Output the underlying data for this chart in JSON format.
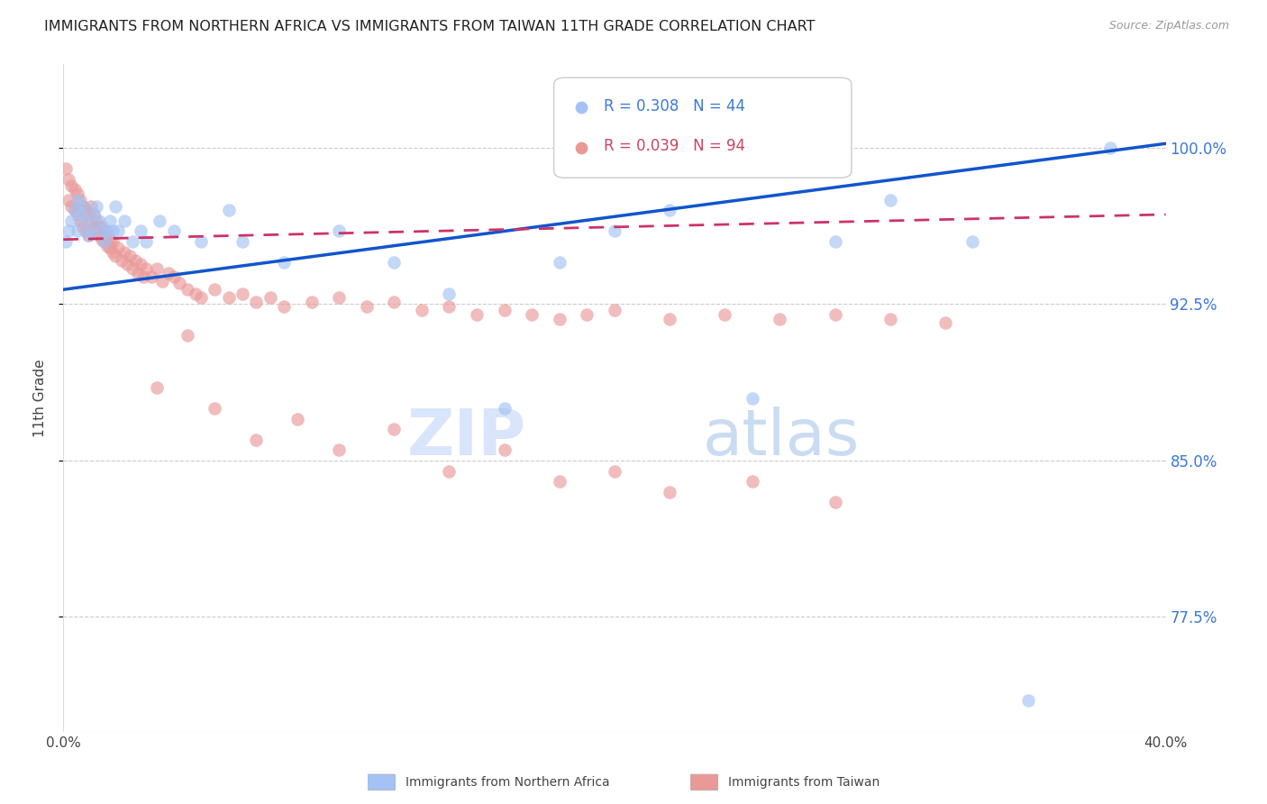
{
  "title": "IMMIGRANTS FROM NORTHERN AFRICA VS IMMIGRANTS FROM TAIWAN 11TH GRADE CORRELATION CHART",
  "source_text": "Source: ZipAtlas.com",
  "ylabel": "11th Grade",
  "ytick_labels": [
    "100.0%",
    "92.5%",
    "85.0%",
    "77.5%"
  ],
  "ytick_values": [
    1.0,
    0.925,
    0.85,
    0.775
  ],
  "xlim": [
    0.0,
    0.4
  ],
  "ylim": [
    0.72,
    1.04
  ],
  "r_blue": 0.308,
  "n_blue": 44,
  "r_pink": 0.039,
  "n_pink": 94,
  "legend_label_blue": "Immigrants from Northern Africa",
  "legend_label_pink": "Immigrants from Taiwan",
  "blue_color": "#a4c2f4",
  "pink_color": "#ea9999",
  "trendline_blue_color": "#1155cc",
  "trendline_pink_color": "#cc3366",
  "watermark_zip": "ZIP",
  "watermark_atlas": "atlas",
  "blue_scatter_x": [
    0.001,
    0.002,
    0.003,
    0.004,
    0.005,
    0.005,
    0.006,
    0.007,
    0.008,
    0.009,
    0.01,
    0.011,
    0.012,
    0.013,
    0.014,
    0.015,
    0.016,
    0.017,
    0.018,
    0.019,
    0.02,
    0.022,
    0.025,
    0.028,
    0.03,
    0.035,
    0.04,
    0.05,
    0.06,
    0.065,
    0.08,
    0.1,
    0.12,
    0.14,
    0.16,
    0.18,
    0.2,
    0.22,
    0.25,
    0.28,
    0.3,
    0.33,
    0.35,
    0.38
  ],
  "blue_scatter_y": [
    0.955,
    0.96,
    0.965,
    0.97,
    0.975,
    0.96,
    0.968,
    0.972,
    0.965,
    0.958,
    0.96,
    0.968,
    0.972,
    0.965,
    0.96,
    0.955,
    0.96,
    0.965,
    0.96,
    0.972,
    0.96,
    0.965,
    0.955,
    0.96,
    0.955,
    0.965,
    0.96,
    0.955,
    0.97,
    0.955,
    0.945,
    0.96,
    0.945,
    0.93,
    0.875,
    0.945,
    0.96,
    0.97,
    0.88,
    0.955,
    0.975,
    0.955,
    0.735,
    1.0
  ],
  "pink_scatter_x": [
    0.001,
    0.002,
    0.002,
    0.003,
    0.003,
    0.004,
    0.004,
    0.005,
    0.005,
    0.006,
    0.006,
    0.007,
    0.007,
    0.008,
    0.008,
    0.009,
    0.009,
    0.01,
    0.01,
    0.011,
    0.011,
    0.012,
    0.012,
    0.013,
    0.013,
    0.014,
    0.014,
    0.015,
    0.015,
    0.016,
    0.016,
    0.017,
    0.017,
    0.018,
    0.018,
    0.019,
    0.02,
    0.021,
    0.022,
    0.023,
    0.024,
    0.025,
    0.026,
    0.027,
    0.028,
    0.029,
    0.03,
    0.032,
    0.034,
    0.036,
    0.038,
    0.04,
    0.042,
    0.045,
    0.048,
    0.05,
    0.055,
    0.06,
    0.065,
    0.07,
    0.075,
    0.08,
    0.09,
    0.1,
    0.11,
    0.12,
    0.13,
    0.14,
    0.15,
    0.16,
    0.17,
    0.18,
    0.19,
    0.2,
    0.22,
    0.24,
    0.26,
    0.28,
    0.3,
    0.32,
    0.034,
    0.045,
    0.055,
    0.07,
    0.085,
    0.1,
    0.12,
    0.14,
    0.16,
    0.18,
    0.2,
    0.22,
    0.25,
    0.28
  ],
  "pink_scatter_y": [
    0.99,
    0.985,
    0.975,
    0.982,
    0.972,
    0.98,
    0.97,
    0.978,
    0.968,
    0.975,
    0.965,
    0.972,
    0.962,
    0.97,
    0.96,
    0.968,
    0.958,
    0.965,
    0.972,
    0.962,
    0.968,
    0.96,
    0.965,
    0.958,
    0.962,
    0.956,
    0.962,
    0.955,
    0.96,
    0.953,
    0.958,
    0.952,
    0.956,
    0.95,
    0.955,
    0.948,
    0.952,
    0.946,
    0.95,
    0.944,
    0.948,
    0.942,
    0.946,
    0.94,
    0.944,
    0.938,
    0.942,
    0.938,
    0.942,
    0.936,
    0.94,
    0.938,
    0.935,
    0.932,
    0.93,
    0.928,
    0.932,
    0.928,
    0.93,
    0.926,
    0.928,
    0.924,
    0.926,
    0.928,
    0.924,
    0.926,
    0.922,
    0.924,
    0.92,
    0.922,
    0.92,
    0.918,
    0.92,
    0.922,
    0.918,
    0.92,
    0.918,
    0.92,
    0.918,
    0.916,
    0.885,
    0.91,
    0.875,
    0.86,
    0.87,
    0.855,
    0.865,
    0.845,
    0.855,
    0.84,
    0.845,
    0.835,
    0.84,
    0.83
  ]
}
